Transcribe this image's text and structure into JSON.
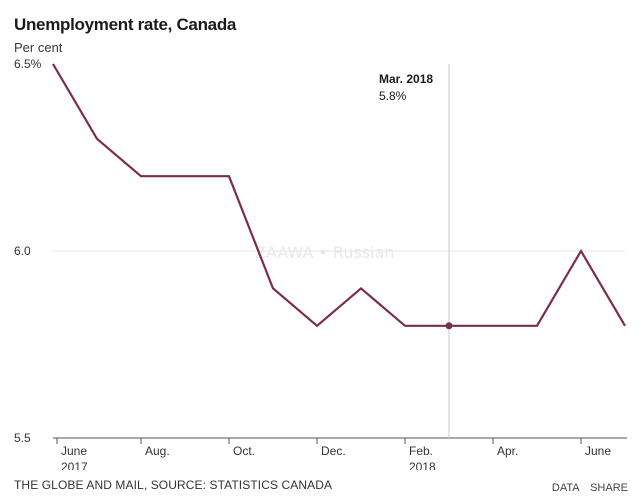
{
  "header": {
    "title": "Unemployment rate, Canada",
    "subtitle": "Per cent"
  },
  "footer": {
    "source": "THE GLOBE AND MAIL, SOURCE: STATISTICS CANADA",
    "data_label": "DATA",
    "share_label": "SHARE"
  },
  "annotation": {
    "label": "Mar. 2018",
    "value": "5.8%"
  },
  "watermark": {
    "text": "ZAAWA • Russian"
  },
  "colors": {
    "line": "#7a2d50",
    "marker_line": "#c8c8c8",
    "grid": "#e6e6e6",
    "axis": "#555555"
  },
  "chart_data": {
    "type": "line",
    "title": "Unemployment rate, Canada",
    "ylabel": "Per cent",
    "xlabel": "",
    "ylim": [
      5.5,
      6.5
    ],
    "yticks": [
      6.5,
      6.0,
      5.5
    ],
    "ytick_labels": [
      "6.5%",
      "6.0",
      "5.5"
    ],
    "x": [
      "June 2017",
      "July 2017",
      "Aug. 2017",
      "Sep. 2017",
      "Oct. 2017",
      "Nov. 2017",
      "Dec. 2017",
      "Jan. 2018",
      "Feb. 2018",
      "Mar. 2018",
      "Apr. 2018",
      "May 2018",
      "June 2018",
      "July 2018"
    ],
    "values": [
      6.5,
      6.3,
      6.2,
      6.2,
      6.2,
      5.9,
      5.8,
      5.9,
      5.8,
      5.8,
      5.8,
      5.8,
      6.0,
      5.8
    ],
    "xtick_index": [
      0,
      2,
      4,
      6,
      8,
      10,
      12
    ],
    "xtick_labels": [
      [
        "June",
        "2017"
      ],
      [
        "Aug."
      ],
      [
        "Oct."
      ],
      [
        "Dec."
      ],
      [
        "Feb.",
        "2018"
      ],
      [
        "Apr."
      ],
      [
        "June"
      ]
    ],
    "highlight_index": 9,
    "highlight_label": "Mar. 2018",
    "highlight_value": "5.8%"
  }
}
